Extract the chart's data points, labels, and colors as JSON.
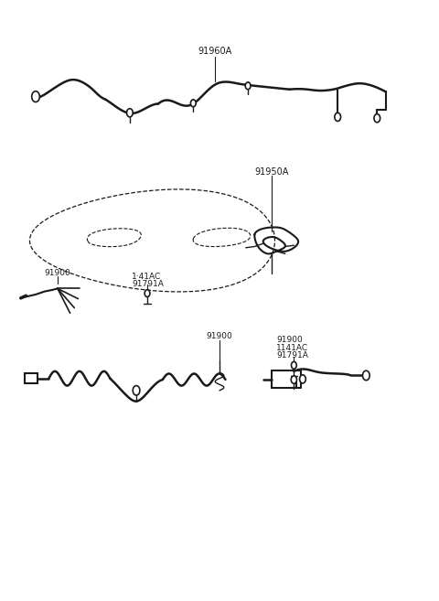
{
  "bg_color": "#ffffff",
  "line_color": "#1a1a1a",
  "text_color": "#1a1a1a",
  "figsize": [
    4.8,
    6.57
  ],
  "dpi": 100,
  "labels": {
    "sec1": "91960A",
    "sec2": "91950A",
    "sec3a": "1·41AC",
    "sec3b": "91791A",
    "sec3c": "91900",
    "sec4a": "91900",
    "sec4b": "91900",
    "sec4c": "1141AC",
    "sec4d": "91791A"
  }
}
